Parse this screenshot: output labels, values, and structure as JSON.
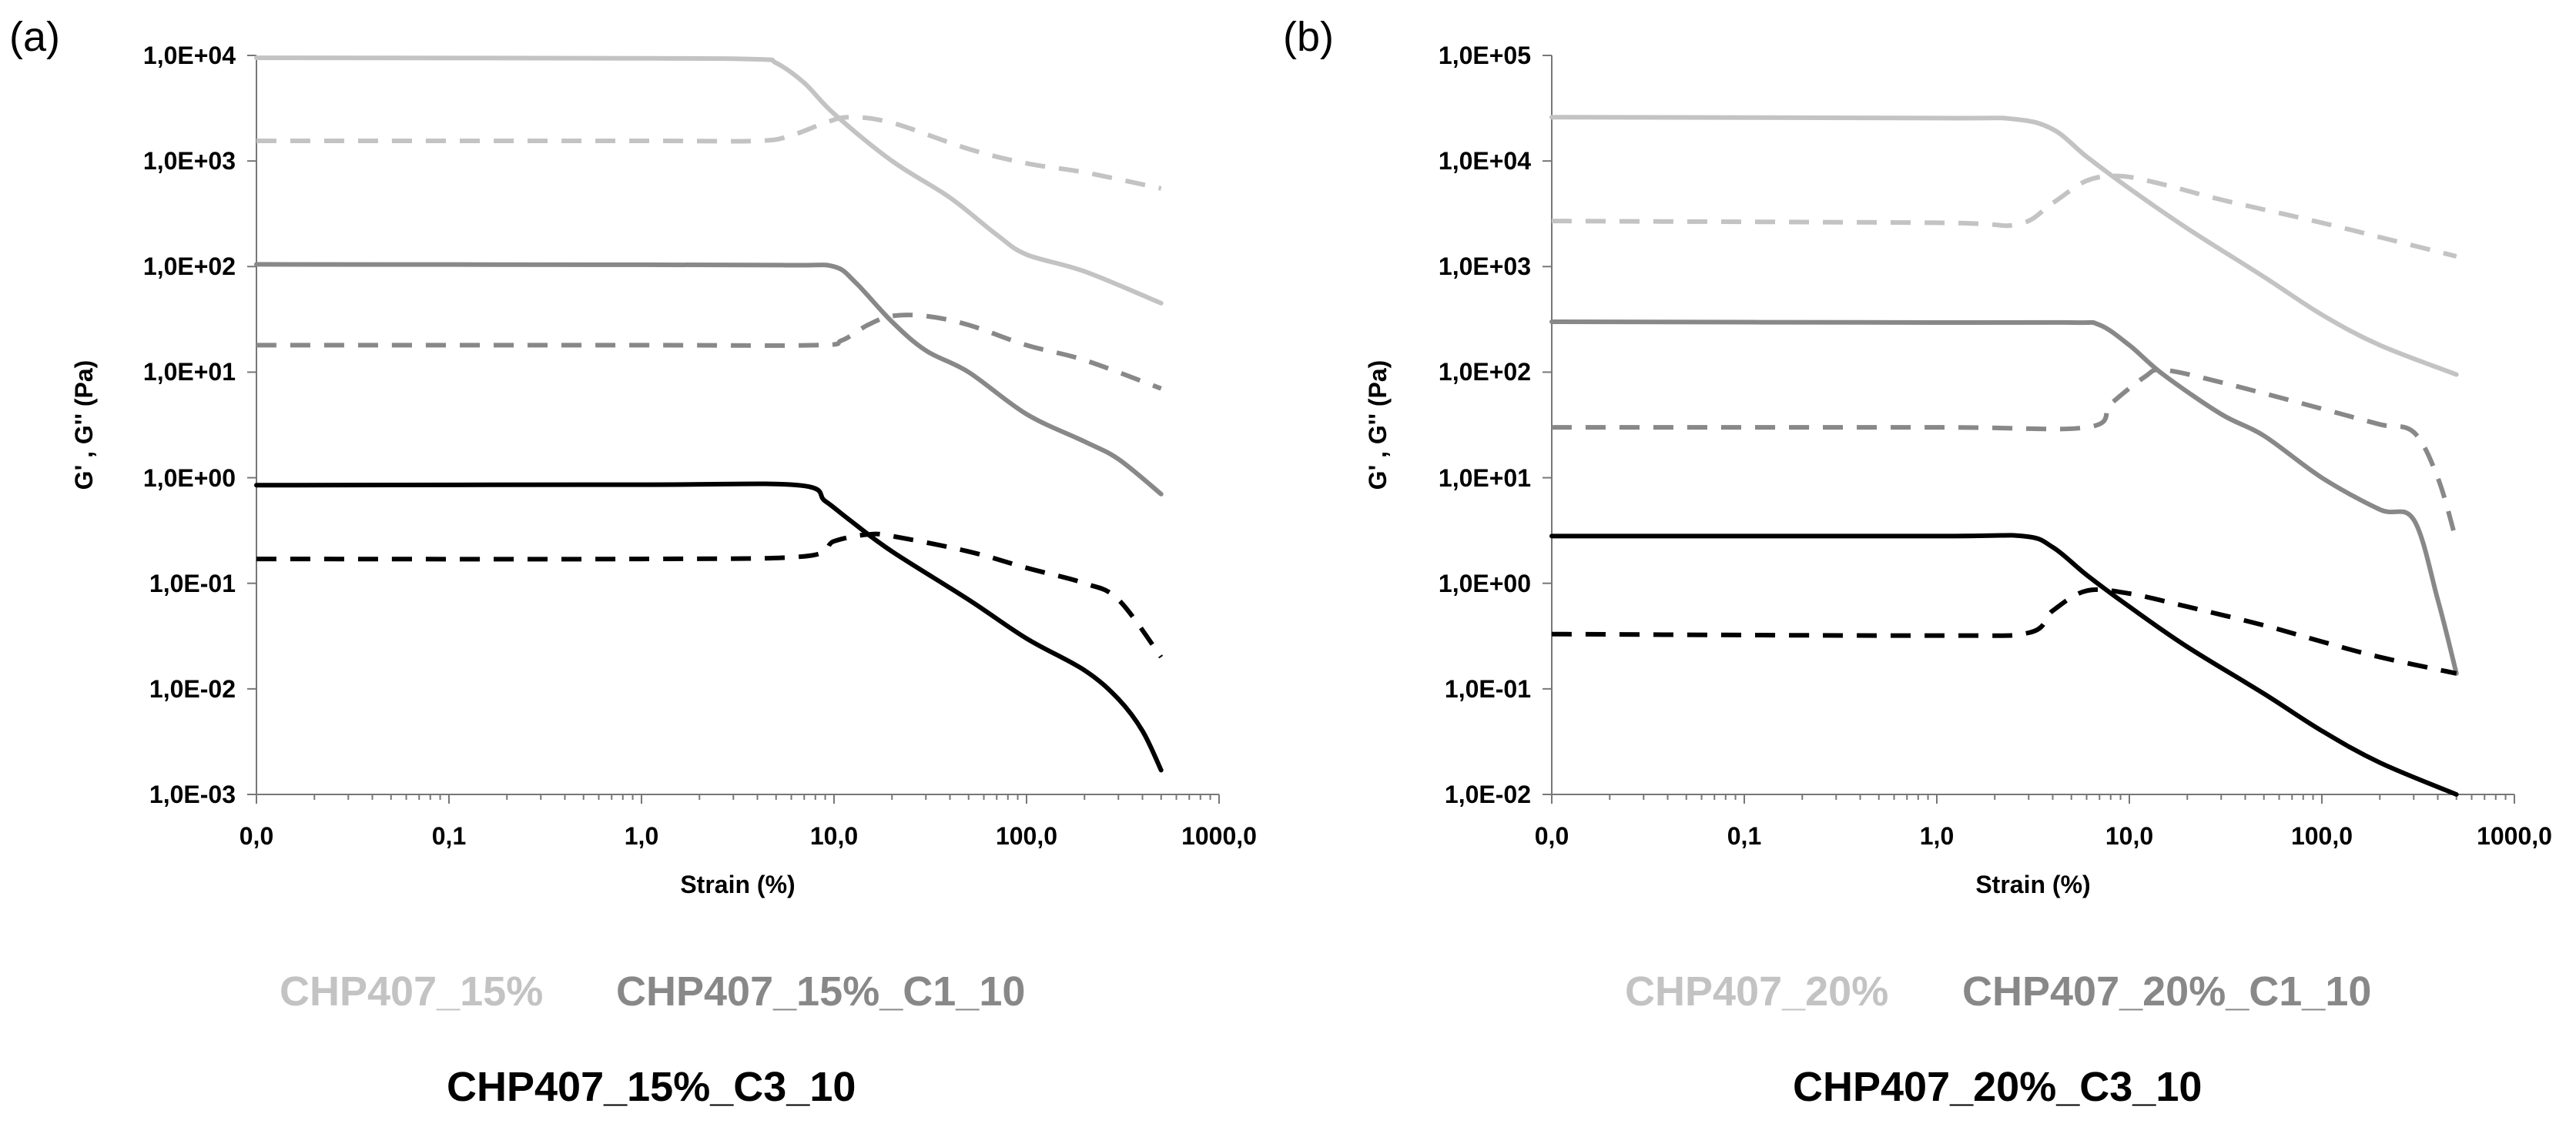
{
  "chart_data": [
    {
      "type": "line",
      "panel_label": "(a)",
      "xscale": "log",
      "yscale": "log",
      "xlabel": "Strain (%)",
      "ylabel": "G' , G'' (Pa)",
      "xlim": [
        0.01,
        1000
      ],
      "ylim": [
        0.001,
        10000
      ],
      "x_tick_values": [
        0.01,
        0.1,
        1,
        10,
        100,
        1000
      ],
      "x_tick_labels": [
        "0,0",
        "0,1",
        "1,0",
        "10,0",
        "100,0",
        "1000,0"
      ],
      "y_tick_values": [
        0.001,
        0.01,
        0.1,
        1,
        10,
        100,
        1000,
        10000
      ],
      "y_tick_labels": [
        "1,0E-03",
        "1,0E-02",
        "1,0E-01",
        "1,0E+00",
        "1,0E+01",
        "1,0E+02",
        "1,0E+03",
        "1,0E+04"
      ],
      "legend": [
        "CHP407_15%",
        "CHP407_15%_C1_10",
        "CHP407_15%_C3_10"
      ],
      "series": [
        {
          "name": "CHP407_15% G'",
          "legend": "CHP407_15%",
          "modulus": "G'",
          "color": "#c3c3c3",
          "dash": false,
          "x": [
            0.01,
            1,
            4,
            5,
            7,
            10,
            20,
            40,
            70,
            100,
            200,
            500
          ],
          "y": [
            9500,
            9400,
            9200,
            8500,
            5500,
            2800,
            1000,
            450,
            200,
            130,
            90,
            45
          ]
        },
        {
          "name": "CHP407_15% G''",
          "legend": "CHP407_15%",
          "modulus": "G''",
          "color": "#c3c3c3",
          "dash": true,
          "x": [
            0.01,
            1,
            4,
            6,
            9,
            12,
            20,
            50,
            100,
            200,
            500
          ],
          "y": [
            1550,
            1550,
            1550,
            1750,
            2300,
            2600,
            2300,
            1300,
            950,
            780,
            550
          ]
        },
        {
          "name": "CHP407_15%_C1_10 G'",
          "legend": "CHP407_15%_C1_10",
          "modulus": "G'",
          "color": "#888888",
          "dash": false,
          "x": [
            0.01,
            1,
            6,
            10,
            13,
            20,
            30,
            50,
            100,
            200,
            300,
            500
          ],
          "y": [
            105,
            104,
            103,
            100,
            70,
            30,
            16,
            10,
            4,
            2.2,
            1.5,
            0.7
          ]
        },
        {
          "name": "CHP407_15%_C1_10 G''",
          "legend": "CHP407_15%_C1_10",
          "modulus": "G''",
          "color": "#888888",
          "dash": true,
          "x": [
            0.01,
            1,
            8,
            11,
            15,
            20,
            30,
            50,
            100,
            200,
            500
          ],
          "y": [
            18,
            18,
            18,
            20,
            28,
            34,
            34,
            28,
            18,
            13,
            7
          ]
        },
        {
          "name": "CHP407_15%_C3_10 G'",
          "legend": "CHP407_15%_C3_10",
          "modulus": "G'",
          "color": "#000000",
          "dash": false,
          "x": [
            0.01,
            1,
            6.5,
            9,
            12,
            20,
            50,
            100,
            200,
            300,
            400,
            500
          ],
          "y": [
            0.85,
            0.86,
            0.85,
            0.6,
            0.4,
            0.2,
            0.07,
            0.03,
            0.015,
            0.008,
            0.004,
            0.0017
          ]
        },
        {
          "name": "CHP407_15%_C3_10 G''",
          "legend": "CHP407_15%_C3_10",
          "modulus": "G''",
          "color": "#000000",
          "dash": true,
          "x": [
            0.01,
            1,
            7,
            10,
            15,
            20,
            50,
            100,
            200,
            300,
            500
          ],
          "y": [
            0.17,
            0.17,
            0.18,
            0.25,
            0.29,
            0.28,
            0.2,
            0.14,
            0.1,
            0.07,
            0.02
          ]
        }
      ]
    },
    {
      "type": "line",
      "panel_label": "(b)",
      "xscale": "log",
      "yscale": "log",
      "xlabel": "Strain (%)",
      "ylabel": "G' , G'' (Pa)",
      "xlim": [
        0.01,
        1000
      ],
      "ylim": [
        0.01,
        100000
      ],
      "x_tick_values": [
        0.01,
        0.1,
        1,
        10,
        100,
        1000
      ],
      "x_tick_labels": [
        "0,0",
        "0,1",
        "1,0",
        "10,0",
        "100,0",
        "1000,0"
      ],
      "y_tick_values": [
        0.01,
        0.1,
        1,
        10,
        100,
        1000,
        10000,
        100000
      ],
      "y_tick_labels": [
        "1,0E-02",
        "1,0E-01",
        "1,0E+00",
        "1,0E+01",
        "1,0E+02",
        "1,0E+03",
        "1,0E+04",
        "1,0E+05"
      ],
      "legend": [
        "CHP407_20%",
        "CHP407_20%_C1_10",
        "CHP407_20%_C3_10"
      ],
      "series": [
        {
          "name": "CHP407_20% G'",
          "legend": "CHP407_20%",
          "modulus": "G'",
          "color": "#c3c3c3",
          "dash": false,
          "x": [
            0.01,
            1,
            2.5,
            4,
            6,
            10,
            20,
            50,
            100,
            200,
            500
          ],
          "y": [
            26000,
            25500,
            25000,
            20000,
            11000,
            5500,
            2300,
            800,
            350,
            180,
            95
          ]
        },
        {
          "name": "CHP407_20% G''",
          "legend": "CHP407_20%",
          "modulus": "G''",
          "color": "#c3c3c3",
          "dash": true,
          "x": [
            0.01,
            1,
            2.6,
            4,
            6,
            9,
            15,
            30,
            100,
            200,
            500
          ],
          "y": [
            2700,
            2600,
            2500,
            4000,
            6500,
            7200,
            6000,
            4300,
            2600,
            1900,
            1250
          ]
        },
        {
          "name": "CHP407_20%_C1_10 G'",
          "legend": "CHP407_20%_C1_10",
          "modulus": "G'",
          "color": "#888888",
          "dash": false,
          "x": [
            0.01,
            1,
            5,
            7,
            10,
            15,
            30,
            50,
            100,
            200,
            300,
            400,
            500
          ],
          "y": [
            300,
            295,
            295,
            280,
            180,
            95,
            40,
            25,
            10,
            5,
            4,
            0.7,
            0.14
          ]
        },
        {
          "name": "CHP407_20%_C1_10 G''",
          "legend": "CHP407_20%_C1_10",
          "modulus": "G''",
          "color": "#888888",
          "dash": true,
          "x": [
            0.01,
            1,
            6,
            8,
            12,
            15,
            30,
            100,
            200,
            300,
            400,
            500
          ],
          "y": [
            30,
            30,
            30,
            50,
            90,
            105,
            80,
            45,
            32,
            27,
            10,
            2.5
          ]
        },
        {
          "name": "CHP407_20%_C3_10 G'",
          "legend": "CHP407_20%_C3_10",
          "modulus": "G'",
          "color": "#000000",
          "dash": false,
          "x": [
            0.01,
            1,
            2.8,
            4,
            6,
            10,
            20,
            50,
            100,
            200,
            500
          ],
          "y": [
            2.8,
            2.8,
            2.8,
            2.2,
            1.2,
            0.6,
            0.25,
            0.09,
            0.04,
            0.02,
            0.01
          ]
        },
        {
          "name": "CHP407_20%_C3_10 G''",
          "legend": "CHP407_20%_C3_10",
          "modulus": "G''",
          "color": "#000000",
          "dash": true,
          "x": [
            0.01,
            1,
            3,
            4,
            6,
            10,
            20,
            50,
            100,
            200,
            500
          ],
          "y": [
            0.33,
            0.32,
            0.34,
            0.55,
            0.85,
            0.8,
            0.6,
            0.4,
            0.28,
            0.2,
            0.14
          ]
        }
      ]
    }
  ]
}
